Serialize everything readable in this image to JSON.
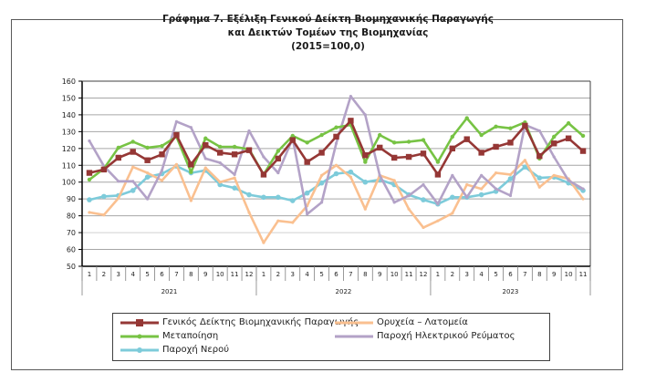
{
  "chart_data": {
    "type": "line",
    "title": [
      "Γράφημα 7. Εξέλιξη Γενικού Δείκτη Βιομηχανικής Παραγωγής",
      "και Δεικτών Τομέων της Βιομηχανίας",
      "(2015=100,0)"
    ],
    "xlabel": "",
    "ylabel": "",
    "ylim": [
      50,
      160
    ],
    "yticks": [
      "50",
      "60",
      "70",
      "80",
      "90",
      "100",
      "110",
      "120",
      "130",
      "140",
      "150",
      "160"
    ],
    "grid": true,
    "legend_position": "bottom",
    "categories": [
      "1",
      "2",
      "3",
      "4",
      "5",
      "6",
      "7",
      "8",
      "9",
      "10",
      "11",
      "12",
      "1",
      "2",
      "3",
      "4",
      "5",
      "6",
      "7",
      "8",
      "9",
      "10",
      "11",
      "12",
      "1",
      "2",
      "3",
      "4",
      "5",
      "6",
      "7",
      "8",
      "9",
      "10",
      "11"
    ],
    "groups": [
      {
        "label": "2021",
        "count": 12
      },
      {
        "label": "2022",
        "count": 12
      },
      {
        "label": "2023",
        "count": 11
      }
    ],
    "series": [
      {
        "name": "Γενικός Δείκτης Βιομηχανικής Παραγωγής",
        "color": "#953735",
        "marker": "square",
        "values": [
          105.5,
          107.5,
          114.5,
          118,
          113,
          116.5,
          128,
          110.5,
          122,
          117.5,
          116.5,
          119,
          104.5,
          114,
          125,
          112,
          117.5,
          127,
          136.5,
          116,
          120.5,
          114.5,
          115,
          117,
          104.5,
          120,
          125.5,
          117.5,
          121,
          123.5,
          133.5,
          115.5,
          123,
          126,
          118.5
        ]
      },
      {
        "name": "Ορυχεία – Λατομεία",
        "color": "#FAC090",
        "marker": "dash",
        "values": [
          82,
          80.5,
          90.5,
          109,
          105.5,
          101,
          110.5,
          89,
          108.5,
          100,
          102.5,
          82,
          64,
          77,
          76,
          86,
          104,
          110,
          103,
          84,
          104,
          101,
          84,
          73,
          77,
          81.5,
          98.5,
          96,
          105.5,
          104.5,
          113,
          97,
          104,
          102,
          90
        ]
      },
      {
        "name": "Μεταποίηση",
        "color": "#77C344",
        "marker": "diamond",
        "values": [
          101.5,
          108,
          120.5,
          124,
          120.5,
          121.5,
          127,
          106,
          126,
          121,
          121,
          119.5,
          104.5,
          118.5,
          127.5,
          123.5,
          128,
          132.5,
          134,
          112,
          128,
          123.5,
          124,
          125,
          112,
          127,
          138,
          128,
          133,
          132,
          135.5,
          114,
          127,
          135,
          127.5
        ]
      },
      {
        "name": "Παροχή Ηλεκτρικού Ρεύματος",
        "color": "#B3A2C7",
        "marker": "dash",
        "values": [
          124.5,
          109.5,
          100.5,
          100.5,
          90,
          107,
          136,
          132.5,
          114,
          111.5,
          104.5,
          130.5,
          115,
          105.5,
          126,
          81,
          88,
          123,
          151,
          140,
          104,
          88,
          92,
          98.5,
          87,
          104,
          91,
          104,
          96,
          92,
          134,
          130.5,
          115,
          101,
          96
        ]
      },
      {
        "name": "Παροχή Νερού",
        "color": "#7DCBDA",
        "marker": "circle",
        "values": [
          89.5,
          91.5,
          92,
          95,
          103,
          105,
          109.5,
          105.5,
          107,
          98.5,
          96.5,
          92.5,
          91,
          91,
          89,
          93.5,
          99.5,
          105,
          106,
          100,
          101.5,
          98.5,
          92.5,
          89.5,
          87,
          91,
          91,
          92.5,
          94.5,
          102,
          109,
          102.5,
          103,
          99.5,
          95
        ]
      }
    ]
  }
}
